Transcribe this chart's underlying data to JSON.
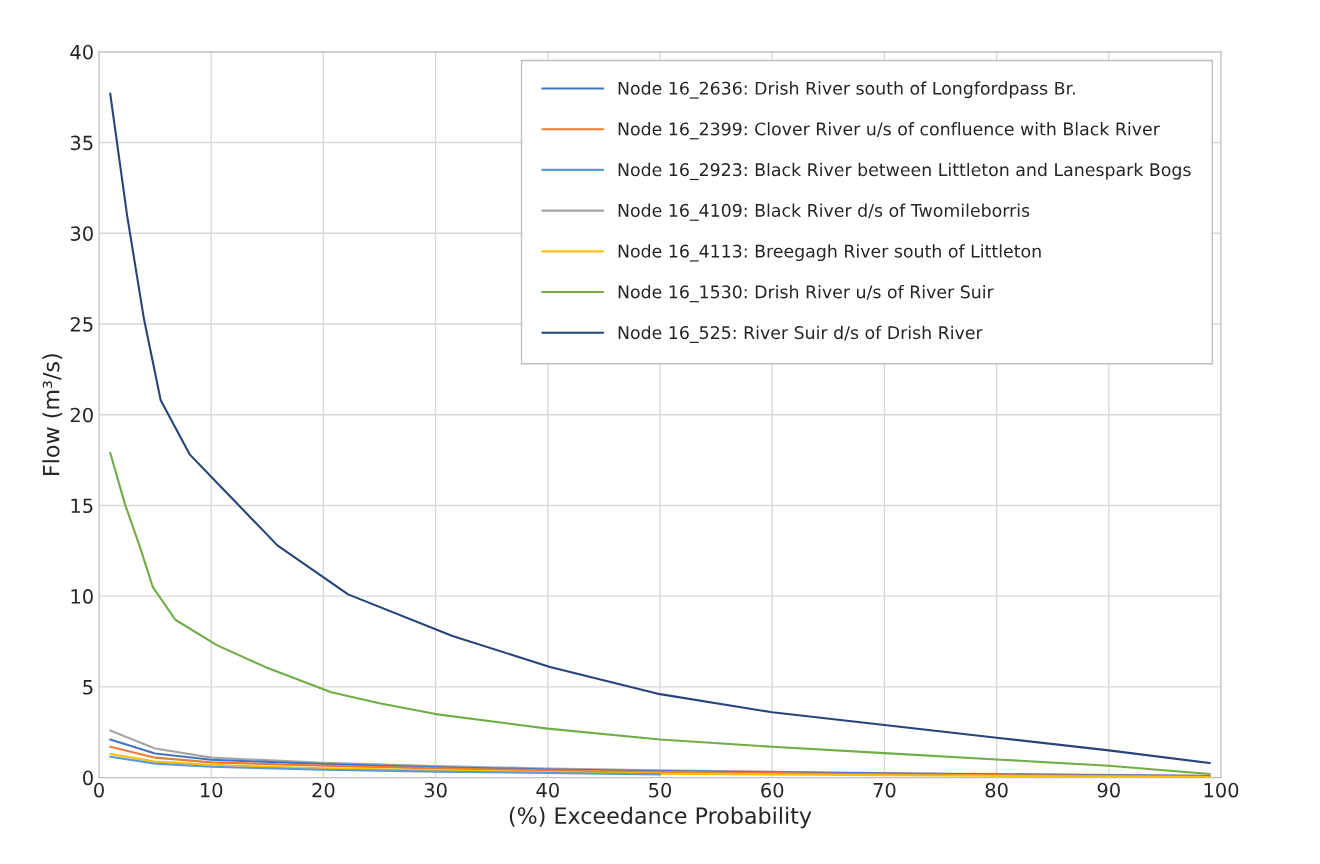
{
  "chart_data": {
    "type": "line",
    "xlabel": "(%) Exceedance Probability",
    "ylabel": "Flow (m³/s)",
    "xlim": [
      0,
      100
    ],
    "xticks": [
      0,
      10,
      20,
      30,
      40,
      50,
      60,
      70,
      80,
      90,
      100
    ],
    "ylim": [
      0,
      40
    ],
    "yticks": [
      0,
      5,
      10,
      15,
      20,
      25,
      30,
      35,
      40
    ],
    "grid": true,
    "legend": "top right",
    "marker": "none",
    "line_style": "solid",
    "series": [
      {
        "name": "Node 16_2636: Drish River south of Longfordpass Br.",
        "color": "#4472c4",
        "x": [
          1,
          5,
          10,
          20,
          30,
          40,
          50,
          70,
          99
        ],
        "values": [
          2.1,
          1.33,
          0.98,
          0.75,
          0.57,
          0.45,
          0.35,
          0.22,
          0.08
        ]
      },
      {
        "name": "Node 16_2399: Clover River u/s of confluence with Black River",
        "color": "#ed7d31",
        "x": [
          1,
          5,
          10,
          20,
          30,
          40,
          50,
          70,
          99
        ],
        "values": [
          1.7,
          1.1,
          0.84,
          0.66,
          0.51,
          0.4,
          0.3,
          0.18,
          0.06
        ]
      },
      {
        "name": "Node 16_2923: Black River between Littleton and Lanespark Bogs",
        "color": "#5b9bd5",
        "x": [
          1,
          5,
          10,
          20,
          30,
          40,
          50
        ],
        "values": [
          1.15,
          0.77,
          0.6,
          0.43,
          0.33,
          0.25,
          0.18
        ]
      },
      {
        "name": "Node 16_4109: Black River d/s of Twomileborris",
        "color": "#a5a5a5",
        "x": [
          1,
          5,
          10,
          20,
          30,
          40,
          50,
          70,
          99
        ],
        "values": [
          2.6,
          1.6,
          1.1,
          0.82,
          0.64,
          0.5,
          0.4,
          0.25,
          0.1
        ]
      },
      {
        "name": "Node 16_4113: Breegagh River south of Littleton",
        "color": "#ffc000",
        "x": [
          1,
          5,
          10,
          20,
          30,
          40,
          50,
          70,
          99
        ],
        "values": [
          1.3,
          0.88,
          0.7,
          0.51,
          0.4,
          0.3,
          0.22,
          0.13,
          0.03
        ]
      },
      {
        "name": "Node 16_1530: Drish River u/s of River Suir",
        "color": "#70ad47",
        "x": [
          1,
          2.3,
          3.6,
          4.8,
          6.8,
          10.5,
          14.8,
          20.7,
          25,
          30,
          40,
          50,
          60,
          70,
          80,
          90,
          99
        ],
        "values": [
          17.9,
          15.1,
          12.8,
          10.5,
          8.7,
          7.3,
          6.1,
          4.7,
          4.1,
          3.5,
          2.7,
          2.1,
          1.7,
          1.35,
          1.0,
          0.65,
          0.2
        ]
      },
      {
        "name": "Node 16_525: River Suir d/s of Drish River",
        "color": "#264478",
        "x": [
          1,
          2.5,
          4,
          5.5,
          8.1,
          10.6,
          15.9,
          22.2,
          31.5,
          40.2,
          50,
          60,
          70,
          80,
          90,
          99
        ],
        "values": [
          37.7,
          31.0,
          25.3,
          20.8,
          17.8,
          16.2,
          12.8,
          10.1,
          7.8,
          6.1,
          4.6,
          3.6,
          2.9,
          2.2,
          1.5,
          0.8
        ]
      }
    ]
  }
}
